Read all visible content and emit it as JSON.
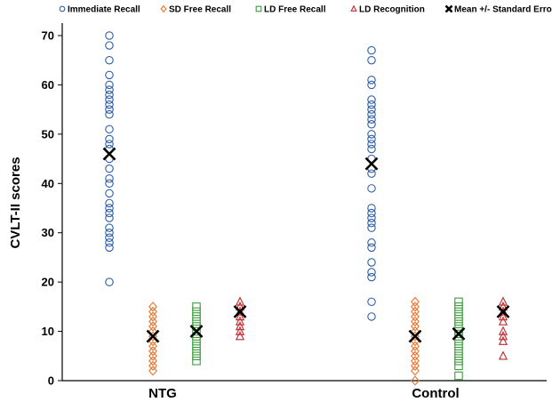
{
  "chart_data": {
    "type": "scatter",
    "title": "",
    "xlabel": "",
    "ylabel": "CVLT-II scores",
    "ylim": [
      0,
      70
    ],
    "yticks": [
      0,
      10,
      20,
      30,
      40,
      50,
      60,
      70
    ],
    "categories": [
      "NTG",
      "Control"
    ],
    "grid": false,
    "legend_position": "top",
    "series": [
      {
        "name": "Immediate Recall",
        "marker": "circle",
        "color": "#2E5FA8",
        "values": {
          "NTG": [
            20,
            27,
            28,
            29,
            30,
            31,
            33,
            34,
            35,
            36,
            38,
            40,
            41,
            43,
            45,
            47,
            48,
            49,
            51,
            54,
            55,
            56,
            57,
            58,
            59,
            60,
            62,
            65,
            68,
            70
          ],
          "Control": [
            13,
            16,
            21,
            22,
            24,
            27,
            28,
            31,
            32,
            33,
            34,
            35,
            39,
            42,
            43,
            45,
            47,
            48,
            49,
            50,
            52,
            53,
            54,
            55,
            56,
            57,
            60,
            61,
            65,
            67
          ]
        }
      },
      {
        "name": "SD Free Recall",
        "marker": "diamond",
        "color": "#E8732A",
        "values": {
          "NTG": [
            2,
            3,
            4,
            5,
            6,
            7,
            8,
            9,
            10,
            11,
            12,
            13,
            14,
            15
          ],
          "Control": [
            0,
            2,
            3,
            4,
            5,
            6,
            7,
            8,
            9,
            10,
            11,
            12,
            13,
            14,
            15,
            16
          ]
        }
      },
      {
        "name": "LD Free Recall",
        "marker": "square",
        "color": "#3B9A3B",
        "values": {
          "NTG": [
            4,
            5,
            6,
            7,
            8,
            9,
            10,
            11,
            12,
            13,
            14,
            15
          ],
          "Control": [
            1,
            3,
            4,
            5,
            6,
            7,
            8,
            9,
            10,
            11,
            12,
            13,
            14,
            15,
            16
          ]
        }
      },
      {
        "name": "LD Recognition",
        "marker": "triangle",
        "color": "#C0282D",
        "values": {
          "NTG": [
            9,
            10,
            11,
            12,
            13,
            14,
            15,
            16
          ],
          "Control": [
            5,
            8,
            9,
            10,
            12,
            13,
            14,
            15,
            16
          ]
        }
      }
    ],
    "means": {
      "name": "Mean +/- Standard Error",
      "marker": "x",
      "color": "#000000",
      "values": [
        {
          "category": "NTG",
          "series": "Immediate Recall",
          "mean": 46
        },
        {
          "category": "NTG",
          "series": "SD Free Recall",
          "mean": 9
        },
        {
          "category": "NTG",
          "series": "LD Free Recall",
          "mean": 10
        },
        {
          "category": "NTG",
          "series": "LD Recognition",
          "mean": 14
        },
        {
          "category": "Control",
          "series": "Immediate Recall",
          "mean": 44
        },
        {
          "category": "Control",
          "series": "SD Free Recall",
          "mean": 9
        },
        {
          "category": "Control",
          "series": "LD Free Recall",
          "mean": 9.5
        },
        {
          "category": "Control",
          "series": "LD Recognition",
          "mean": 14
        }
      ]
    }
  }
}
